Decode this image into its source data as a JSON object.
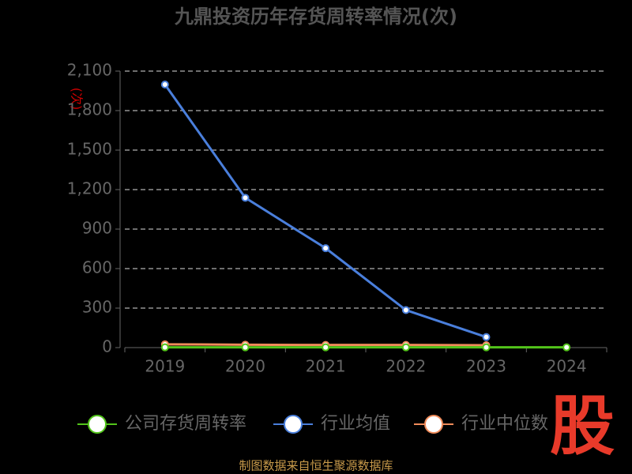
{
  "chart_data": {
    "type": "line",
    "title": "九鼎投资历年存货周转率情况(次)",
    "y_label": "(次)",
    "categories": [
      "2019",
      "2020",
      "2021",
      "2022",
      "2023",
      "2024"
    ],
    "series": [
      {
        "name": "公司存货周转率",
        "color": "#52c41a",
        "values": [
          2,
          2,
          2,
          2,
          2,
          2
        ]
      },
      {
        "name": "行业均值",
        "color": "#4a7fdc",
        "values": [
          1998,
          1138,
          755,
          285,
          80,
          null
        ]
      },
      {
        "name": "行业中位数",
        "color": "#f08b5a",
        "values": [
          25,
          22,
          20,
          20,
          18,
          null
        ]
      }
    ],
    "ylim": [
      0,
      2100
    ],
    "yticks": [
      0,
      300,
      600,
      900,
      {
        "value": 1200,
        "label": "1,200"
      },
      {
        "value": 1500,
        "label": "1,500"
      },
      {
        "value": 1800,
        "label": "1,800"
      },
      {
        "value": 2100,
        "label": "2,100"
      }
    ],
    "grid": true,
    "source": "制图数据来自恒生聚源数据库",
    "watermark": "股"
  }
}
